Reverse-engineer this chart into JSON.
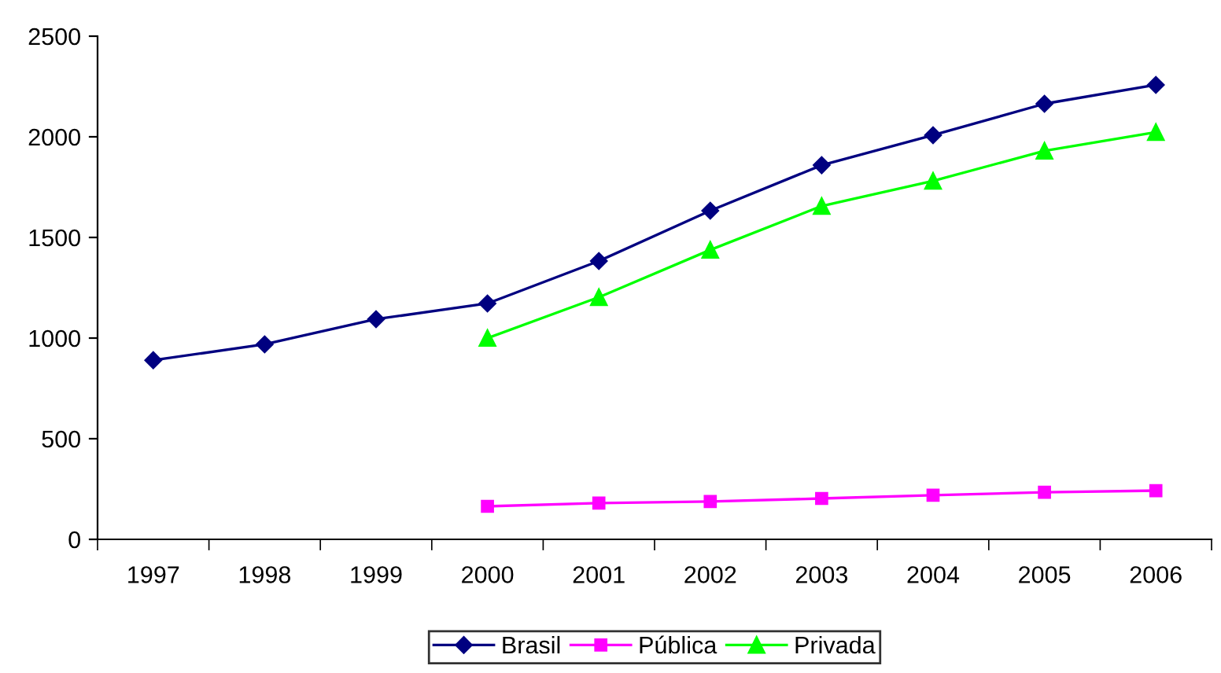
{
  "chart_data": {
    "type": "line",
    "categories": [
      "1997",
      "1998",
      "1999",
      "2000",
      "2001",
      "2002",
      "2003",
      "2004",
      "2005",
      "2006"
    ],
    "series": [
      {
        "name": "Brasil",
        "color": "#000080",
        "marker": "diamond",
        "values": [
          890,
          969,
          1094,
          1172,
          1383,
          1633,
          1859,
          2008,
          2164,
          2258
        ]
      },
      {
        "name": "Pública",
        "color": "#ff00ff",
        "marker": "square",
        "values": [
          null,
          null,
          null,
          164,
          180,
          188,
          203,
          219,
          234,
          242
        ]
      },
      {
        "name": "Privada",
        "color": "#00ff00",
        "marker": "triangle",
        "values": [
          null,
          null,
          null,
          1000,
          1203,
          1438,
          1656,
          1781,
          1930,
          2023
        ]
      }
    ],
    "ylim": [
      0,
      2500
    ],
    "yticks": [
      0,
      500,
      1000,
      1500,
      2000,
      2500
    ],
    "grid": false,
    "legend": "bottom"
  }
}
